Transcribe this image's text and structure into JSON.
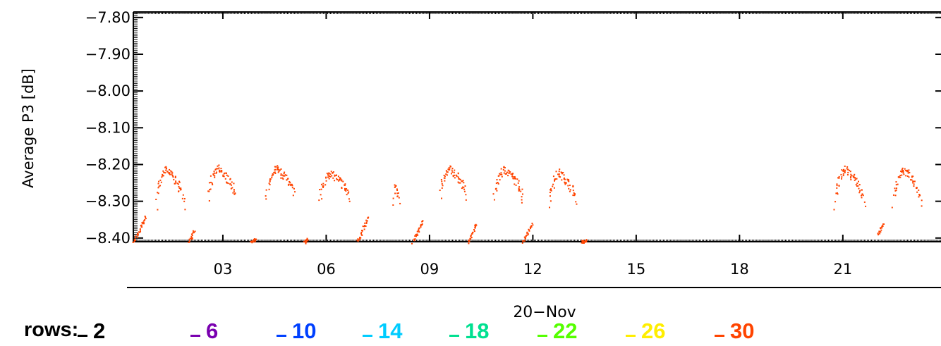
{
  "chart_data": {
    "type": "scatter",
    "ylabel": "Average P3 [dB]",
    "xlabel": "20−Nov",
    "ylim": [
      -8.41,
      -7.785
    ],
    "xlim": [
      0.4,
      23.85
    ],
    "yticks": [
      "−7.80",
      "−7.90",
      "−8.00",
      "−8.10",
      "−8.20",
      "−8.30",
      "−8.40"
    ],
    "ytick_values": [
      -7.8,
      -7.9,
      -8.0,
      -8.1,
      -8.2,
      -8.3,
      -8.4
    ],
    "xticks": [
      "03",
      "06",
      "09",
      "12",
      "15",
      "18",
      "21"
    ],
    "xtick_values": [
      3,
      6,
      9,
      12,
      15,
      18,
      21
    ],
    "series": [
      {
        "name": "30",
        "color": "#ff4400",
        "arches": [
          {
            "start": 1.05,
            "end": 1.85,
            "min": -8.31,
            "peak": -8.21
          },
          {
            "start": 2.55,
            "end": 3.35,
            "min": -8.29,
            "peak": -8.21
          },
          {
            "start": 4.25,
            "end": 5.05,
            "min": -8.29,
            "peak": -8.21
          },
          {
            "start": 5.8,
            "end": 6.65,
            "min": -8.3,
            "peak": -8.22
          },
          {
            "start": 7.95,
            "end": 8.1,
            "min": -8.31,
            "peak": -8.25
          },
          {
            "start": 9.3,
            "end": 10.05,
            "min": -8.29,
            "peak": -8.21
          },
          {
            "start": 10.85,
            "end": 11.7,
            "min": -8.3,
            "peak": -8.21
          },
          {
            "start": 12.45,
            "end": 13.25,
            "min": -8.31,
            "peak": -8.22
          },
          {
            "start": 20.75,
            "end": 21.6,
            "min": -8.31,
            "peak": -8.21
          },
          {
            "start": 22.45,
            "end": 23.25,
            "min": -8.31,
            "peak": -8.21
          }
        ],
        "rises": [
          {
            "start": 0.4,
            "end": 0.75,
            "min": -8.41,
            "peak": -8.34
          },
          {
            "start": 2.0,
            "end": 2.15,
            "min": -8.41,
            "peak": -8.38
          },
          {
            "start": 3.8,
            "end": 3.95,
            "min": -8.41,
            "peak": -8.4
          },
          {
            "start": 5.35,
            "end": 5.45,
            "min": -8.41,
            "peak": -8.4
          },
          {
            "start": 6.9,
            "end": 7.2,
            "min": -8.41,
            "peak": -8.34
          },
          {
            "start": 8.5,
            "end": 8.8,
            "min": -8.41,
            "peak": -8.35
          },
          {
            "start": 10.1,
            "end": 10.35,
            "min": -8.41,
            "peak": -8.36
          },
          {
            "start": 11.7,
            "end": 11.95,
            "min": -8.41,
            "peak": -8.36
          },
          {
            "start": 13.4,
            "end": 13.55,
            "min": -8.41,
            "peak": -8.405
          },
          {
            "start": 22.0,
            "end": 22.15,
            "min": -8.39,
            "peak": -8.36
          }
        ]
      }
    ],
    "legend_title": "rows:",
    "legend": [
      {
        "label": "2",
        "color": "#000000"
      },
      {
        "label": "6",
        "color": "#7a00b0"
      },
      {
        "label": "10",
        "color": "#0040ff"
      },
      {
        "label": "14",
        "color": "#00ccff"
      },
      {
        "label": "18",
        "color": "#00e090"
      },
      {
        "label": "22",
        "color": "#55ff00"
      },
      {
        "label": "26",
        "color": "#ffee00"
      },
      {
        "label": "30",
        "color": "#ff4400"
      }
    ]
  }
}
